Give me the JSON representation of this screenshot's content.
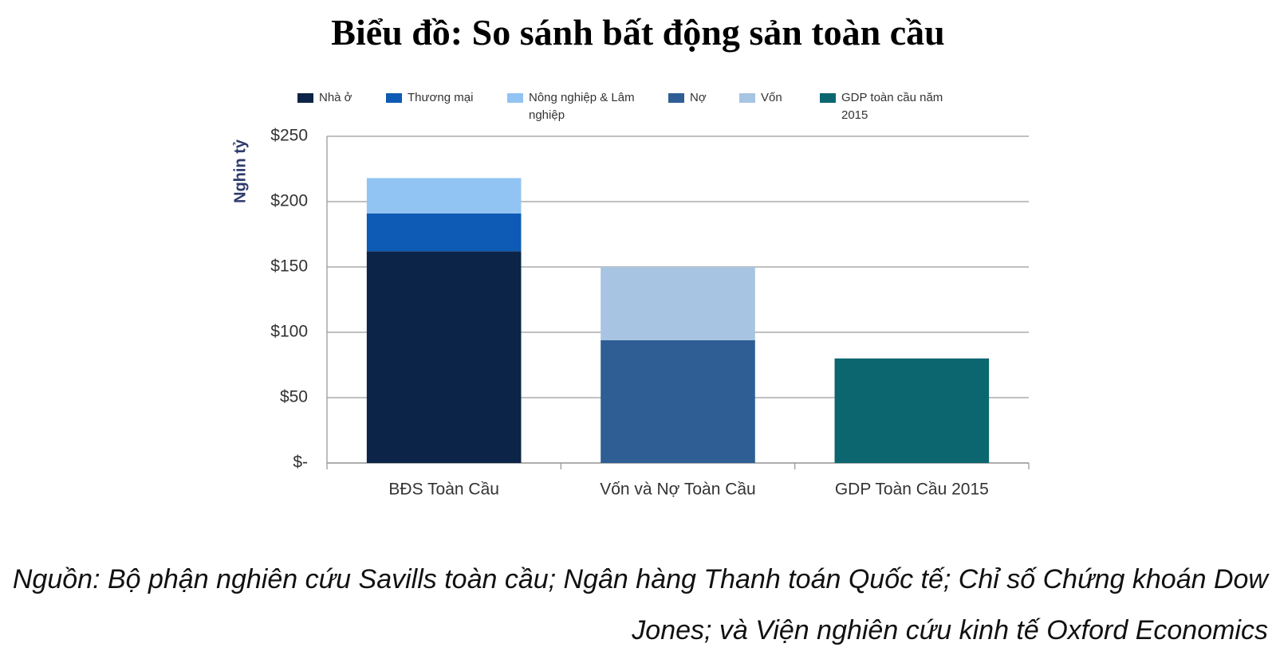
{
  "chart_data": {
    "type": "stacked_bar",
    "title": "Biểu đồ: So sánh bất động sản toàn cầu",
    "y_label": "Nghin tỷ",
    "categories": [
      "BĐS Toàn Cầu",
      "Vốn và Nợ Toàn Cầu",
      "GDP Toàn Cầu 2015"
    ],
    "series": [
      {
        "name": "Nhà ở",
        "color": "#0b2447",
        "values": [
          162,
          null,
          null
        ]
      },
      {
        "name": "Thương mại",
        "color": "#0d5bb5",
        "values": [
          29,
          null,
          null
        ]
      },
      {
        "name": "Nông nghiệp & Lâm nghiệp",
        "color": "#91c4f2",
        "values": [
          27,
          null,
          null
        ]
      },
      {
        "name": "Nợ",
        "color": "#2f5e94",
        "values": [
          null,
          94,
          null
        ]
      },
      {
        "name": "Vốn",
        "color": "#a7c4e2",
        "values": [
          null,
          56,
          null
        ]
      },
      {
        "name": "GDP toàn cầu năm 2015",
        "color": "#0b6670",
        "values": [
          null,
          null,
          80
        ]
      }
    ],
    "ylim": [
      0,
      250
    ],
    "yticks": [
      {
        "value": 0,
        "label": "$-"
      },
      {
        "value": 50,
        "label": "$50"
      },
      {
        "value": 100,
        "label": "$100"
      },
      {
        "value": 150,
        "label": "$150"
      },
      {
        "value": 200,
        "label": "$200"
      },
      {
        "value": 250,
        "label": "$250"
      }
    ],
    "grid": true,
    "source": "Nguồn: Bộ phận nghiên cứu Savills toàn cầu; Ngân hàng Thanh toán Quốc tế; Chỉ số Chứng khoán Dow Jones; và Viện nghiên cứu kinh tế Oxford Economics"
  }
}
